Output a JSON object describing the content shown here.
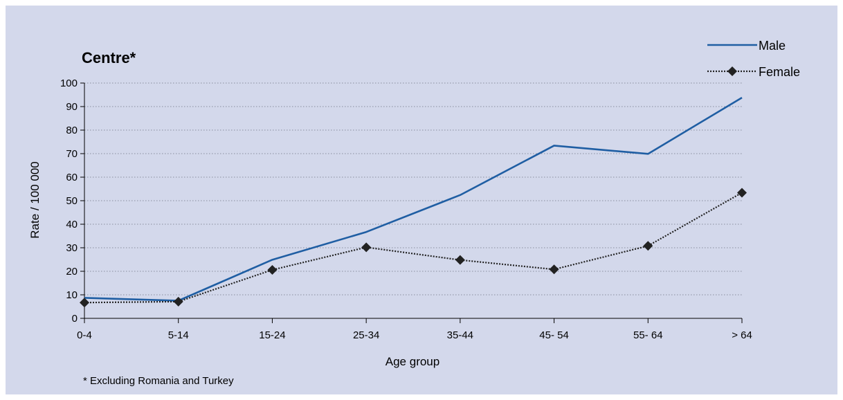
{
  "chart_data": {
    "type": "line",
    "title": "Centre*",
    "xlabel": "Age group",
    "ylabel": "Rate / 100 000",
    "ylim": [
      0,
      100
    ],
    "yticks": [
      0,
      10,
      20,
      30,
      40,
      50,
      60,
      70,
      80,
      90,
      100
    ],
    "categories": [
      "0-4",
      "5-14",
      "15-24",
      "25-34",
      "35-44",
      "45- 54",
      "55- 64",
      "> 64"
    ],
    "series": [
      {
        "name": "Male",
        "color": "#1f5ea3",
        "style": "solid",
        "marker": "none",
        "values": [
          8.7,
          7.5,
          24.9,
          36.7,
          52.4,
          73.4,
          69.9,
          93.8
        ]
      },
      {
        "name": "Female",
        "color": "#222222",
        "style": "dotted",
        "marker": "diamond",
        "values": [
          6.7,
          7.1,
          20.6,
          30.2,
          24.8,
          20.8,
          30.8,
          53.4
        ]
      }
    ],
    "grid": "horizontal dotted",
    "legend_position": "top-right",
    "footnote": "* Excluding Romania and Turkey",
    "background": "#d3d8eb"
  }
}
